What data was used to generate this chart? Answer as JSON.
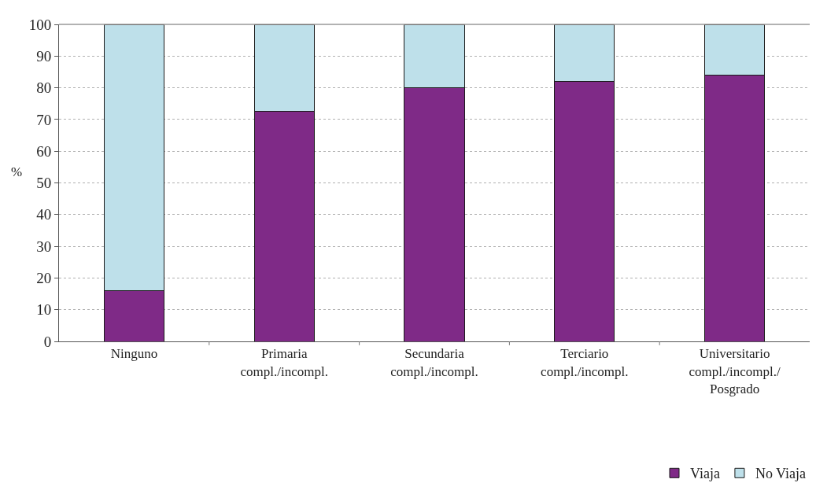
{
  "chart_data": {
    "type": "bar",
    "stacked": true,
    "ylabel": "%",
    "categories": [
      "Ninguno",
      "Primaria\ncompl./incompl.",
      "Secundaria\ncompl./incompl.",
      "Terciario\ncompl./incompl.",
      "Universitario\ncompl./incompl./\nPosgrado"
    ],
    "series": [
      {
        "name": "Viaja",
        "color": "#7f2a87",
        "values": [
          16,
          72.5,
          80,
          82,
          84
        ]
      },
      {
        "name": "No Viaja",
        "color": "#bee0ea",
        "values": [
          84,
          27.5,
          20,
          18,
          16
        ]
      }
    ],
    "ylim": [
      0,
      100
    ],
    "yticks": [
      0,
      10,
      20,
      30,
      40,
      50,
      60,
      70,
      80,
      90,
      100
    ],
    "grid": "y",
    "legend": "bottom right"
  }
}
